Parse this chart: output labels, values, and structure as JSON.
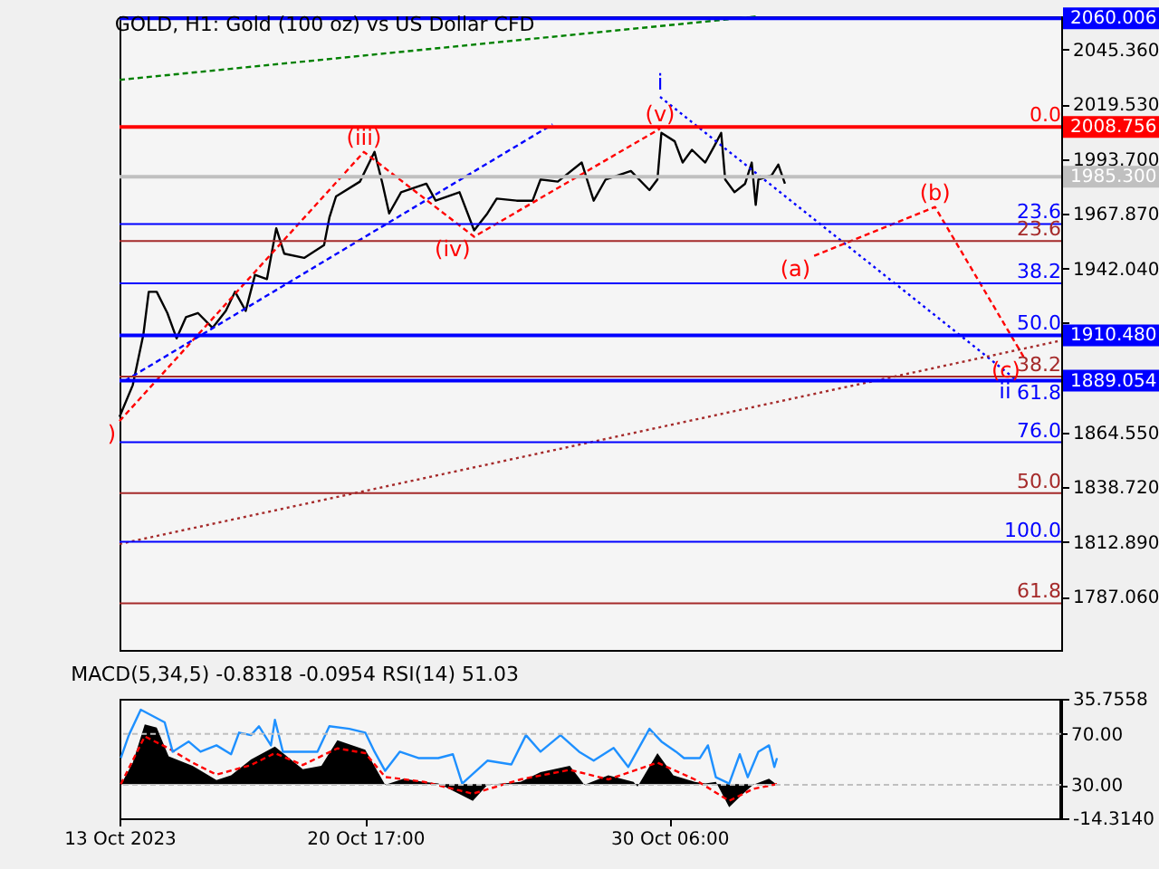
{
  "chart_data": [
    {
      "type": "line",
      "title": "GOLD, H1:  Gold (100 oz) vs US Dollar CFD",
      "xlim": [
        "2023-10-13T00:00",
        "2023-11-11T13:00"
      ],
      "ylim": [
        1762,
        2061
      ],
      "tick_labels": "y",
      "yticks": [
        {
          "value": 2045.36,
          "label": "2045.360"
        },
        {
          "value": 2019.53,
          "label": "2019.530"
        },
        {
          "value": 1993.7,
          "label": "1993.700"
        },
        {
          "value": 1967.87,
          "label": "1967.870"
        },
        {
          "value": 1942.04,
          "label": "1942.040"
        },
        {
          "value": 1916.21,
          "label": null
        },
        {
          "value": 1864.55,
          "label": "1864.550"
        },
        {
          "value": 1838.72,
          "label": "1838.720"
        },
        {
          "value": 1812.89,
          "label": "1812.890"
        },
        {
          "value": 1787.06,
          "label": "1787.060"
        }
      ],
      "series": [
        {
          "color": "#000000",
          "x": [
            "2023-10-13T00:00",
            "2023-10-13T10:00",
            "2023-10-13T18:00",
            "2023-10-13T22:00",
            "2023-10-14T04:00",
            "2023-10-14T12:00",
            "2023-10-14T19:00",
            "2023-10-15T02:00",
            "2023-10-15T11:00",
            "2023-10-15T22:00",
            "2023-10-16T08:00",
            "2023-10-16T15:00",
            "2023-10-16T23:00",
            "2023-10-17T06:00",
            "2023-10-17T15:00",
            "2023-10-17T22:00",
            "2023-10-18T04:00",
            "2023-10-18T19:00",
            "2023-10-19T10:00",
            "2023-10-19T14:00",
            "2023-10-19T19:00",
            "2023-10-20T13:00",
            "2023-10-21T00:00",
            "2023-10-21T06:00",
            "2023-10-21T11:00",
            "2023-10-21T20:00",
            "2023-10-22T15:00",
            "2023-10-22T22:00",
            "2023-10-23T16:00",
            "2023-10-24T03:00",
            "2023-10-24T13:00",
            "2023-10-24T20:00",
            "2023-10-25T11:00",
            "2023-10-25T23:00",
            "2023-10-26T05:00",
            "2023-10-26T18:00",
            "2023-10-27T12:00",
            "2023-10-27T21:00",
            "2023-10-28T06:00",
            "2023-10-29T01:00",
            "2023-10-29T15:00",
            "2023-10-29T21:00",
            "2023-10-30T00:00",
            "2023-10-30T10:00",
            "2023-10-30T16:00",
            "2023-10-30T23:00",
            "2023-10-31T09:00",
            "2023-10-31T16:00",
            "2023-10-31T21:00",
            "2023-11-01T00:00",
            "2023-11-01T07:00",
            "2023-11-01T15:00",
            "2023-11-01T20:00",
            "2023-11-01T23:00",
            "2023-11-02T01:00",
            "2023-11-02T11:00",
            "2023-11-02T16:00",
            "2023-11-02T21:00"
          ],
          "values": [
            1872,
            1887,
            1911,
            1931,
            1931,
            1921,
            1909,
            1919,
            1921,
            1914,
            1922,
            1931,
            1922,
            1939,
            1937,
            1961,
            1949,
            1947,
            1953,
            1966,
            1976,
            1983,
            1997,
            1982,
            1968,
            1978,
            1982,
            1974,
            1978,
            1960,
            1968,
            1975,
            1974,
            1974,
            1984,
            1983,
            1992,
            1974,
            1984,
            1988,
            1979,
            1984,
            2006,
            2002,
            1992,
            1998,
            1992,
            2000,
            2006,
            1984,
            1978,
            1982,
            1992,
            1972,
            1984,
            1986,
            1991,
            1982
          ]
        },
        {
          "color": "#008000",
          "line_style": "dashed",
          "x": [
            "2023-10-13T00:00",
            "2023-11-02T01:00"
          ],
          "values": [
            2031,
            2061
          ]
        },
        {
          "color": "#ff0000",
          "line_style": "dashed",
          "x": [
            "2023-10-13T00:00",
            "2023-10-20T16:00",
            "2023-10-24T03:00",
            "2023-10-29T23:00"
          ],
          "values": [
            1870,
            1997,
            1957,
            2008
          ]
        },
        {
          "color": "#0000ff",
          "line_style": "dashed",
          "x": [
            "2023-10-13T04:00",
            "2023-10-26T14:00"
          ],
          "values": [
            1889,
            2010
          ]
        },
        {
          "color": "#0000ff",
          "line_style": "dotted",
          "x": [
            "2023-10-29T23:00",
            "2023-11-10T02:00"
          ],
          "values": [
            2023,
            1890
          ]
        },
        {
          "color": "#ff0000",
          "line_style": "dashed",
          "x": [
            "2023-11-03T19:00",
            "2023-11-07T14:00",
            "2023-11-10T09:00"
          ],
          "values": [
            1948,
            1971,
            1900
          ]
        },
        {
          "color": "#a52a2a",
          "line_style": "dotted",
          "x": [
            "2023-10-13T00:00",
            "2023-11-11T13:00"
          ],
          "values": [
            1812,
            1908
          ]
        }
      ],
      "ref_lines": [
        {
          "axis": "y",
          "value": 2060.006,
          "label": "2060.006",
          "color": "#0000ff"
        },
        {
          "axis": "y",
          "value": 2008.756,
          "label": "2008.756",
          "color": "#ff0000"
        },
        {
          "axis": "y",
          "value": 1985.3,
          "label": "1985.300",
          "color": "#c0c0c0"
        },
        {
          "axis": "y",
          "value": 1963,
          "color": "#0000ff"
        },
        {
          "axis": "y",
          "value": 1955,
          "color": "#a52a2a"
        },
        {
          "axis": "y",
          "value": 1935,
          "color": "#0000ff"
        },
        {
          "axis": "y",
          "value": 1910.48,
          "label": "1910.480",
          "color": "#0000ff"
        },
        {
          "axis": "y",
          "value": 1891,
          "color": "#a52a2a"
        },
        {
          "axis": "y",
          "value": 1889.054,
          "label": "1889.054",
          "color": "#0000ff"
        },
        {
          "axis": "y",
          "value": 1860,
          "color": "#0000ff"
        },
        {
          "axis": "y",
          "value": 1836,
          "color": "#a52a2a"
        },
        {
          "axis": "y",
          "value": 1813,
          "color": "#0000ff"
        },
        {
          "axis": "y",
          "value": 1784,
          "color": "#a52a2a"
        }
      ],
      "annotations": [
        {
          "text": "0.0",
          "x": "2023-11-11T13:00",
          "y": 2008.756
        },
        {
          "text": "23.6",
          "x": "2023-11-11T13:00",
          "y": 1963
        },
        {
          "text": "23.6",
          "x": "2023-11-11T13:00",
          "y": 1955
        },
        {
          "text": "38.2",
          "x": "2023-11-11T13:00",
          "y": 1935
        },
        {
          "text": "50.0",
          "x": "2023-11-11T13:00",
          "y": 1910.48
        },
        {
          "text": "38.2",
          "x": "2023-11-11T13:00",
          "y": 1891
        },
        {
          "text": "61.8",
          "x": "2023-11-11T13:00",
          "y": 1889.054
        },
        {
          "text": "76.0",
          "x": "2023-11-11T13:00",
          "y": 1860
        },
        {
          "text": "50.0",
          "x": "2023-11-11T13:00",
          "y": 1836
        },
        {
          "text": "100.0",
          "x": "2023-11-11T13:00",
          "y": 1813
        },
        {
          "text": "61.8",
          "x": "2023-11-11T13:00",
          "y": 1784
        },
        {
          "text": "i",
          "x": "2023-10-29T23:00",
          "y": 2023
        },
        {
          "text": "(v)",
          "x": "2023-10-29T23:00",
          "y": 2008
        },
        {
          "text": "(iii)",
          "x": "2023-10-20T16:00",
          "y": 1997
        },
        {
          "text": "(iv)",
          "x": "2023-10-24T03:00",
          "y": 1957
        },
        {
          "text": "(a)",
          "x": "2023-11-03T19:00",
          "y": 1948
        },
        {
          "text": "(b)",
          "x": "2023-11-07T14:00",
          "y": 1971
        },
        {
          "text": "(c)",
          "x": "2023-11-10T09:00",
          "y": 1900
        },
        {
          "text": "ii",
          "x": "2023-11-10T02:00",
          "y": 1890
        },
        {
          "text": ")",
          "x": "2023-10-13T00:00",
          "y": 1870
        }
      ]
    },
    {
      "type": "line",
      "title": "MACD(5,34,5) -0.8318 -0.0954 RSI(14) 51.03",
      "xlim": [
        "2023-10-13T00:00",
        "2023-11-11T13:00"
      ],
      "xticks": [
        {
          "value": "2023-10-13T00:00",
          "label": "13 Oct 2023"
        },
        {
          "value": "2023-10-20T17:00",
          "label": "20 Oct 17:00"
        },
        {
          "value": "2023-10-30T06:00",
          "label": "30 Oct 06:00"
        }
      ],
      "ylim": [
        -14.314,
        35.7558
      ],
      "yticks": [
        {
          "value": 35.7558,
          "label": "35.7558"
        },
        {
          "value": -14.314,
          "label": "-14.3140"
        }
      ],
      "y2lim": [
        3.75,
        97.5
      ],
      "y2ticks": [
        {
          "value": 70,
          "label": "70.00"
        },
        {
          "value": 30,
          "label": "30.00"
        }
      ],
      "series": [
        {
          "type": "area",
          "color": "#000000",
          "x": [
            "2023-10-13T01:00",
            "2023-10-13T10:00",
            "2023-10-13T19:00",
            "2023-10-14T04:00",
            "2023-10-14T13:00",
            "2023-10-15T07:00",
            "2023-10-16T01:00",
            "2023-10-16T12:00",
            "2023-10-17T03:00",
            "2023-10-17T21:00",
            "2023-10-18T18:00",
            "2023-10-19T08:00",
            "2023-10-19T20:00",
            "2023-10-20T17:00",
            "2023-10-21T08:00",
            "2023-10-21T22:00",
            "2023-10-22T13:00",
            "2023-10-23T00:00",
            "2023-10-24T02:00",
            "2023-10-24T13:00",
            "2023-10-25T14:00",
            "2023-10-26T05:00",
            "2023-10-27T03:00",
            "2023-10-27T14:00",
            "2023-10-28T08:00",
            "2023-10-29T03:00",
            "2023-10-29T06:00",
            "2023-10-29T21:00",
            "2023-10-30T09:00",
            "2023-10-31T01:00",
            "2023-10-31T09:00",
            "2023-10-31T17:00",
            "2023-11-01T03:00",
            "2023-11-01T13:00",
            "2023-11-01T21:00",
            "2023-11-02T09:00",
            "2023-11-02T15:00"
          ],
          "values": [
            -0.3,
            9.0,
            25.0,
            23.7,
            11.7,
            7.7,
            1.7,
            3.7,
            10.3,
            15.7,
            6.3,
            7.7,
            18.4,
            14.4,
            -0.3,
            2.3,
            1.0,
            0.3,
            -7.0,
            -0.3,
            1.0,
            5.0,
            7.7,
            -0.3,
            3.7,
            1.0,
            -1.0,
            13.0,
            3.7,
            1.0,
            0.3,
            1.0,
            -9.7,
            -4.3,
            -0.3,
            2.3,
            -0.3
          ]
        },
        {
          "type": "line",
          "color": "#ff0000",
          "line_style": "dashed",
          "x": [
            "2023-10-13T01:00",
            "2023-10-13T19:00",
            "2023-10-14T13:00",
            "2023-10-15T07:00",
            "2023-10-16T01:00",
            "2023-10-17T03:00",
            "2023-10-17T21:00",
            "2023-10-18T18:00",
            "2023-10-19T20:00",
            "2023-10-20T17:00",
            "2023-10-21T08:00",
            "2023-10-22T13:00",
            "2023-10-24T02:00",
            "2023-10-25T14:00",
            "2023-10-27T03:00",
            "2023-10-28T08:00",
            "2023-10-29T21:00",
            "2023-10-31T01:00",
            "2023-11-01T03:00",
            "2023-11-01T21:00",
            "2023-11-02T15:00"
          ],
          "values": [
            0,
            20,
            15,
            9,
            4,
            8,
            13,
            8,
            15,
            13,
            3,
            1,
            -4,
            2,
            6,
            2,
            9,
            2,
            -7,
            -2,
            0
          ]
        },
        {
          "type": "line",
          "axis": "y2",
          "color": "#1e90ff",
          "x": [
            "2023-10-13T01:00",
            "2023-10-13T07:00",
            "2023-10-13T16:00",
            "2023-10-14T01:00",
            "2023-10-14T10:00",
            "2023-10-14T16:00",
            "2023-10-15T04:00",
            "2023-10-15T13:00",
            "2023-10-16T01:00",
            "2023-10-16T12:00",
            "2023-10-16T18:00",
            "2023-10-17T03:00",
            "2023-10-17T09:00",
            "2023-10-17T18:00",
            "2023-10-17T21:00",
            "2023-10-18T03:00",
            "2023-10-18T15:00",
            "2023-10-19T05:00",
            "2023-10-19T14:00",
            "2023-10-20T05:00",
            "2023-10-20T17:00",
            "2023-10-21T00:00",
            "2023-10-21T08:00",
            "2023-10-21T19:00",
            "2023-10-22T09:00",
            "2023-10-23T00:00",
            "2023-10-23T11:00",
            "2023-10-23T18:00",
            "2023-10-24T13:00",
            "2023-10-25T07:00",
            "2023-10-25T18:00",
            "2023-10-26T05:00",
            "2023-10-26T20:00",
            "2023-10-27T10:00",
            "2023-10-27T21:00",
            "2023-10-28T12:00",
            "2023-10-28T23:00",
            "2023-10-29T15:00",
            "2023-10-30T00:00",
            "2023-10-30T11:00",
            "2023-10-30T17:00",
            "2023-10-31T05:00",
            "2023-10-31T11:00",
            "2023-10-31T17:00",
            "2023-11-01T03:00",
            "2023-11-01T11:00",
            "2023-11-01T17:00",
            "2023-11-02T01:00",
            "2023-11-02T09:00",
            "2023-11-02T13:00",
            "2023-11-02T15:00"
          ],
          "values": [
            51,
            69,
            89,
            84,
            79,
            56,
            64,
            56,
            61,
            54,
            71,
            69,
            76,
            61,
            81,
            56,
            56,
            56,
            76,
            74,
            71,
            56,
            41,
            56,
            51,
            51,
            54,
            31,
            49,
            46,
            69,
            56,
            69,
            56,
            49,
            59,
            44,
            74,
            64,
            56,
            51,
            51,
            61,
            36,
            31,
            54,
            36,
            56,
            61,
            44,
            51
          ]
        }
      ],
      "ref_lines": [
        {
          "axis": "y2",
          "value": 70,
          "color": "#c0c0c0",
          "line_style": "dashed"
        },
        {
          "axis": "y2",
          "value": 30,
          "color": "#c0c0c0",
          "line_style": "dashed"
        }
      ]
    }
  ]
}
